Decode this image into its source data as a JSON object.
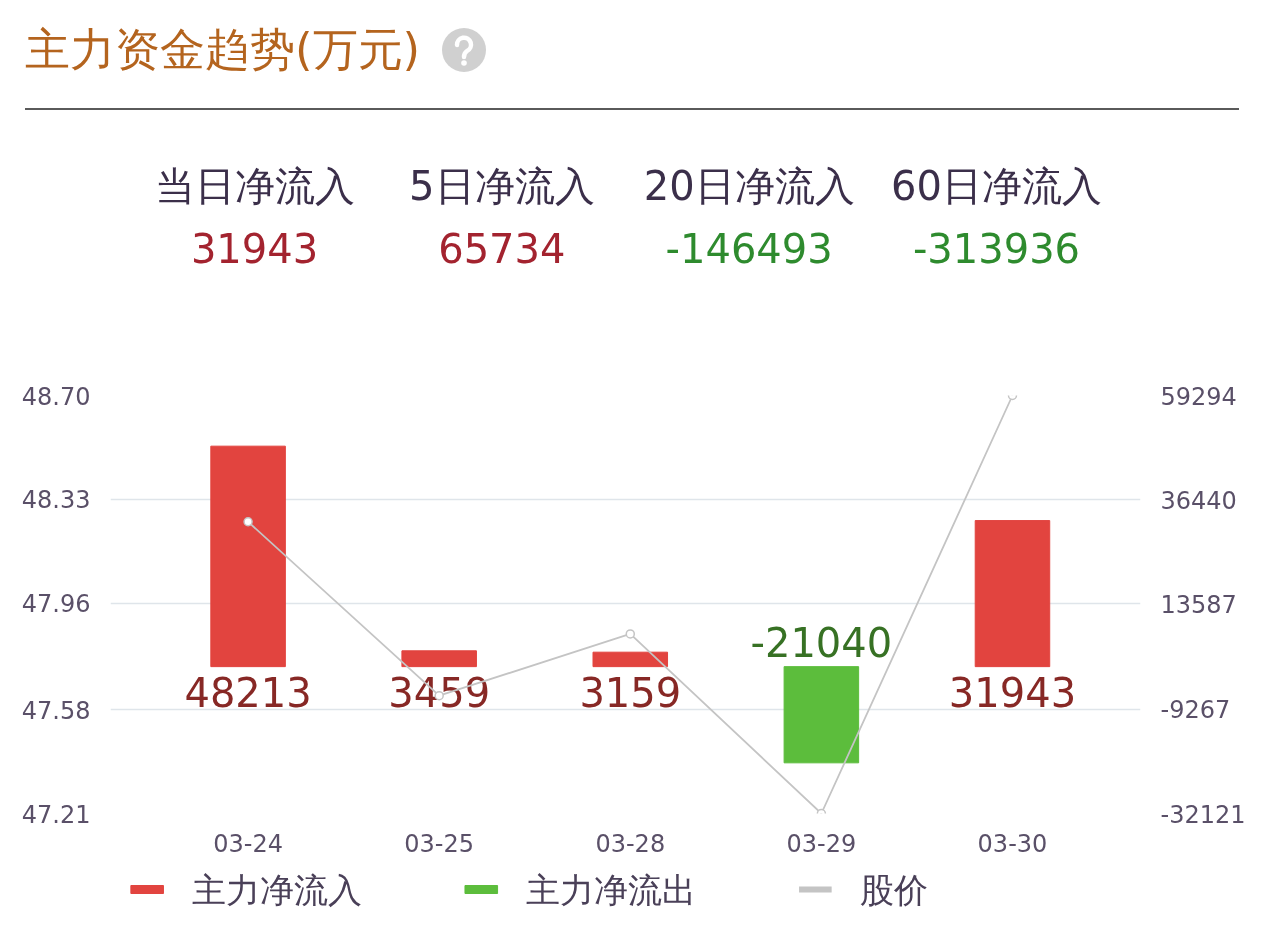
{
  "chart_data": [
    {
      "type": "other",
      "title": "主力资金趋势(万元)",
      "categories": [
        "当日净流入",
        "5日净流入",
        "20日净流入",
        "60日净流入"
      ],
      "values": [
        31943,
        65734,
        -146493,
        -313936
      ],
      "colors": [
        "#a3232f",
        "#a3232f",
        "#2e8b2e",
        "#2e8b2e"
      ],
      "data_labels": true
    },
    {
      "type": "bar",
      "categories": [
        "03-24",
        "03-25",
        "03-28",
        "03-29",
        "03-30"
      ],
      "series": [
        {
          "name": "主力净流入",
          "color": "#e2443f",
          "axis": "y2",
          "values": [
            48213,
            3459,
            3159,
            null,
            31943
          ],
          "value_labels": [
            "48213",
            "3459",
            "3159",
            null,
            "31943"
          ]
        },
        {
          "name": "主力净流出",
          "color": "#5cbd3c",
          "axis": "y2",
          "values": [
            null,
            null,
            null,
            -21040,
            null
          ],
          "value_labels": [
            null,
            null,
            null,
            "-21040",
            null
          ]
        },
        {
          "name": "股价",
          "type": "line",
          "color": "#c4c4c4",
          "values": [
            48.25,
            47.63,
            47.85,
            47.21,
            48.7
          ]
        }
      ],
      "ylim": [
        47.21,
        48.7
      ],
      "yticks": [
        47.21,
        47.58,
        47.96,
        48.33,
        {
          "value": 48.7,
          "label": "48.70"
        }
      ],
      "y2lim": [
        -32121,
        59294
      ],
      "y2ticks": [
        -32121,
        -9267,
        13587,
        36440,
        59294
      ],
      "grid": "y",
      "legend": "bottom",
      "marker": "circle"
    }
  ]
}
